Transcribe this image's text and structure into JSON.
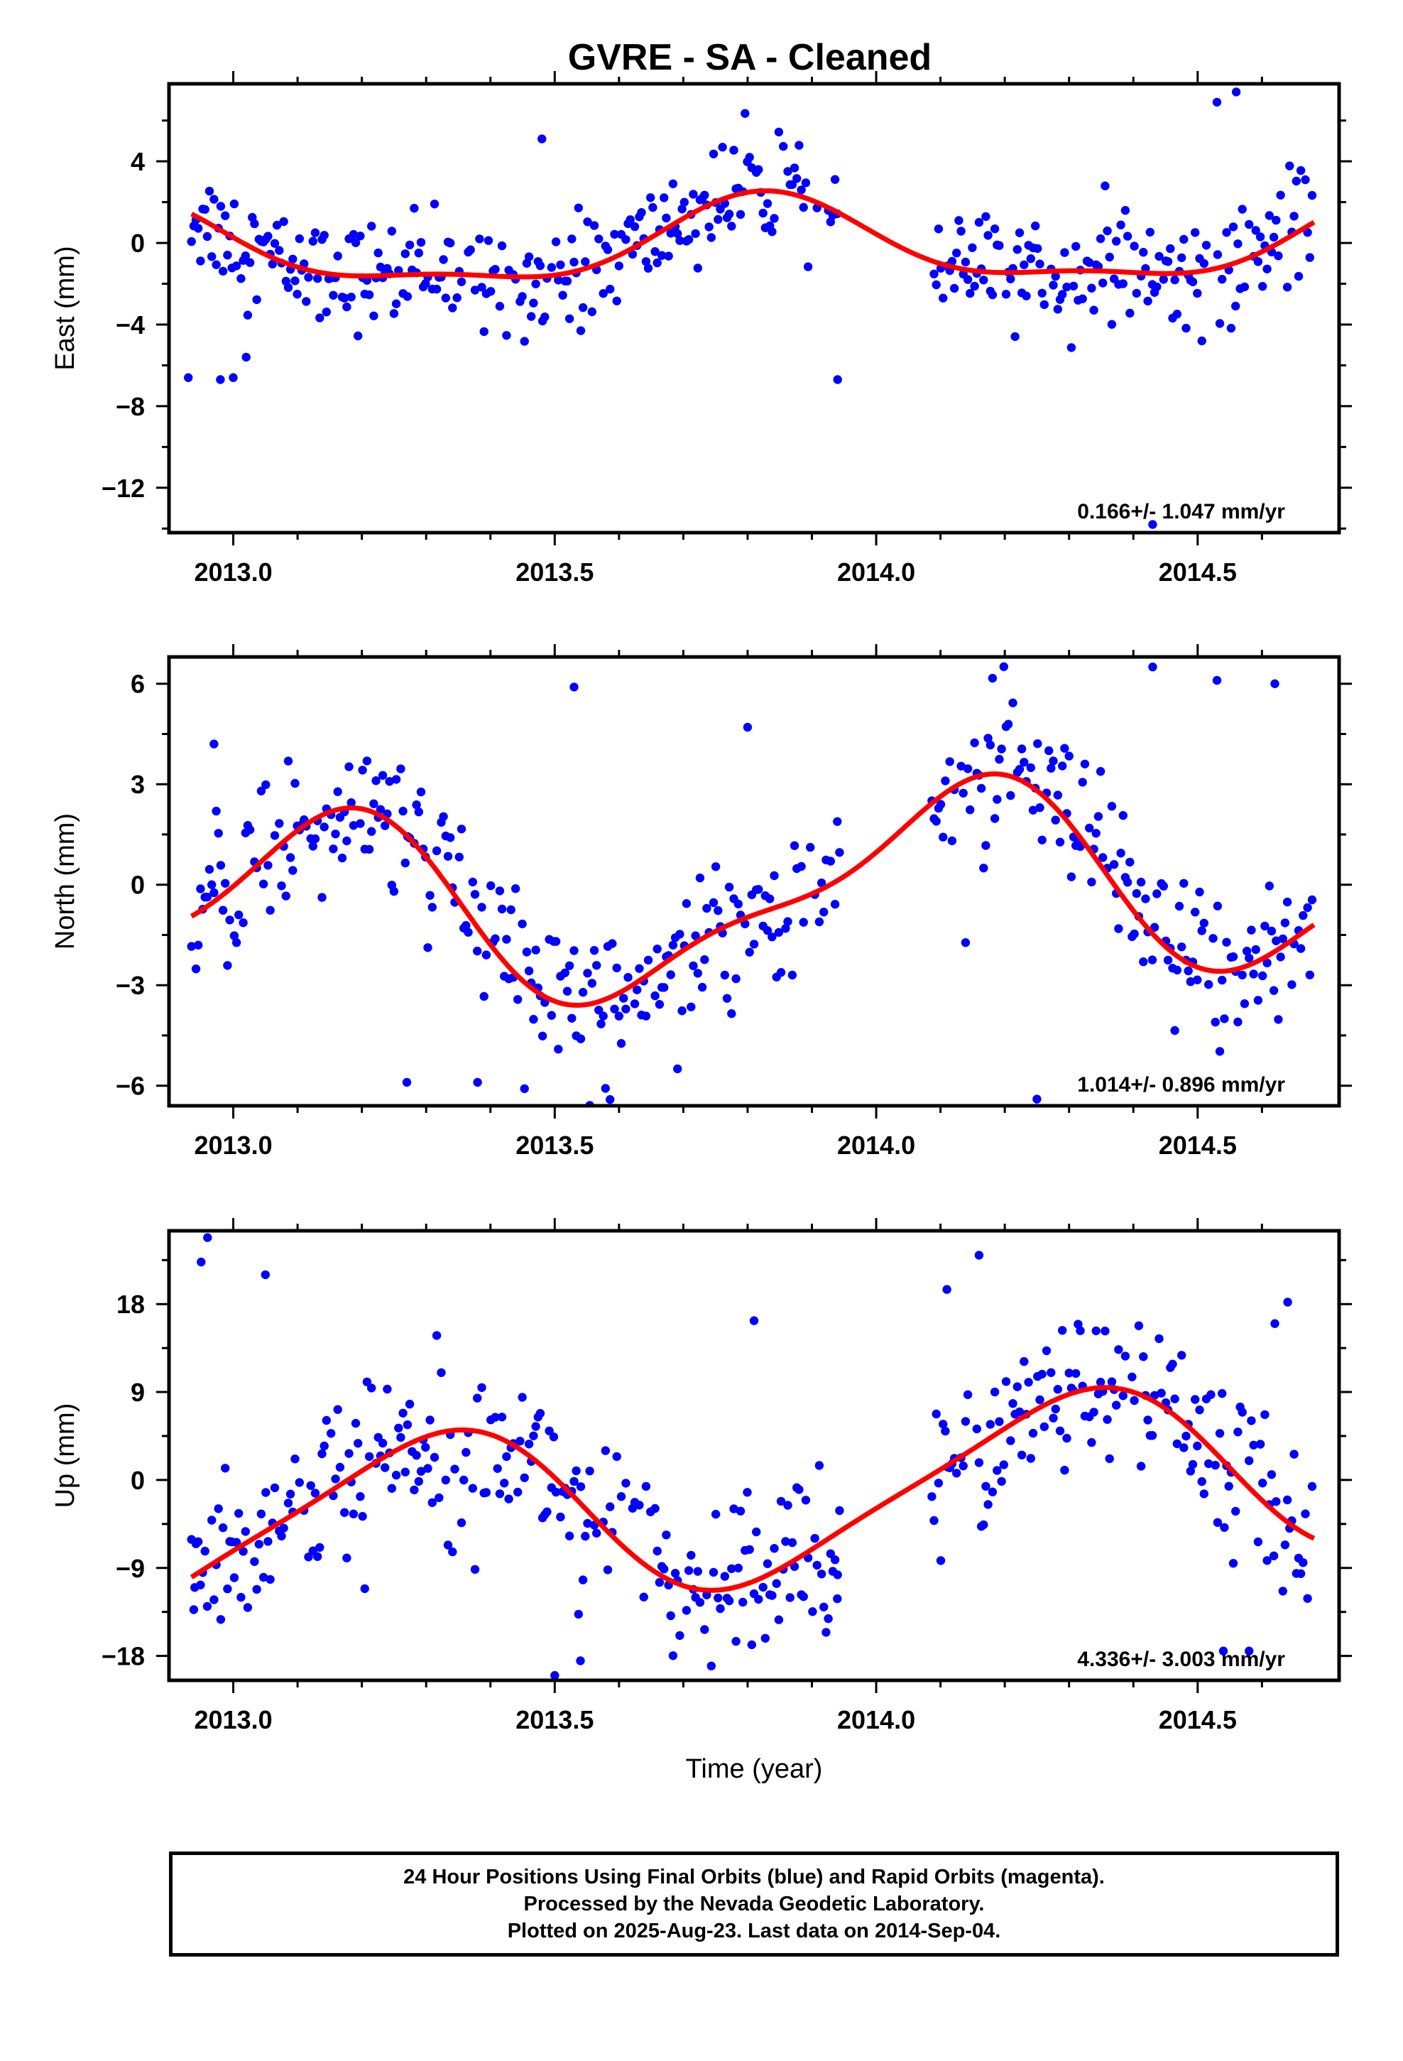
{
  "title": "GVRE  - SA - Cleaned",
  "footer": {
    "line1": "24 Hour Positions Using Final Orbits (blue) and Rapid Orbits (magenta).",
    "line2": "Processed by the Nevada Geodetic Laboratory.",
    "line3": "Plotted on 2025-Aug-23. Last data on 2014-Sep-04."
  },
  "colors": {
    "points": "#0000ff",
    "fit": "#ff0000",
    "frame": "#000000"
  },
  "chart_data": [
    {
      "type": "scatter",
      "title": "GVRE  - SA - Cleaned",
      "xlabel": "",
      "ylabel": "East (mm)",
      "xlim": [
        2012.9,
        2014.72
      ],
      "ylim": [
        -14.2,
        7.8
      ],
      "xticks": [
        2013.0,
        2013.5,
        2014.0,
        2014.5
      ],
      "xtick_labels": [
        "2013.0",
        "2013.5",
        "2014.0",
        "2014.5"
      ],
      "yticks": [
        4,
        0,
        -4,
        -8,
        -12
      ],
      "ytick_labels": [
        "4",
        "0",
        "−4",
        "−8",
        "−12"
      ],
      "rate_text": "0.166+/- 1.047 mm/yr",
      "fit": {
        "offset": -0.15,
        "rate": 0.166,
        "t0": 2013.8,
        "amp1": 2.0,
        "amp2": 0.7,
        "phase1": 0.58,
        "phase2": 0.2
      },
      "gaps": [
        [
          2013.945,
          2014.085
        ]
      ],
      "noise": 1.3,
      "outliers": [
        [
          2012.93,
          -6.6
        ],
        [
          2012.98,
          -6.7
        ],
        [
          2013.0,
          -6.6
        ],
        [
          2013.02,
          -5.6
        ],
        [
          2014.56,
          7.4
        ],
        [
          2014.53,
          6.9
        ],
        [
          2014.43,
          -13.8
        ],
        [
          2013.48,
          5.1
        ],
        [
          2013.94,
          -6.7
        ]
      ]
    },
    {
      "type": "scatter",
      "xlabel": "",
      "ylabel": "North (mm)",
      "xlim": [
        2012.9,
        2014.72
      ],
      "ylim": [
        -6.6,
        6.8
      ],
      "xticks": [
        2013.0,
        2013.5,
        2014.0,
        2014.5
      ],
      "xtick_labels": [
        "2013.0",
        "2013.5",
        "2014.0",
        "2014.5"
      ],
      "yticks": [
        6,
        3,
        0,
        -3,
        -6
      ],
      "ytick_labels": [
        "6",
        "3",
        "0",
        "−3",
        "−6"
      ],
      "rate_text": "1.014+/- 0.896 mm/yr",
      "fit": {
        "offset": -0.35,
        "rate": 1.014,
        "t0": 2013.8,
        "amp1": 2.7,
        "amp2": 0.9,
        "phase1": 0.87,
        "phase2": 0.1
      },
      "gaps": [
        [
          2013.945,
          2014.085
        ]
      ],
      "noise": 1.2,
      "outliers": [
        [
          2012.97,
          4.2
        ],
        [
          2013.53,
          5.9
        ],
        [
          2013.8,
          4.7
        ],
        [
          2014.43,
          6.5
        ],
        [
          2014.25,
          -6.4
        ],
        [
          2013.27,
          -5.9
        ],
        [
          2013.38,
          -5.9
        ],
        [
          2014.53,
          6.1
        ],
        [
          2014.62,
          6.0
        ]
      ]
    },
    {
      "type": "scatter",
      "xlabel": "Time (year)",
      "ylabel": "Up (mm)",
      "xlim": [
        2012.9,
        2014.72
      ],
      "ylim": [
        -20.5,
        25.5
      ],
      "xticks": [
        2013.0,
        2013.5,
        2014.0,
        2014.5
      ],
      "xtick_labels": [
        "2013.0",
        "2013.5",
        "2014.0",
        "2014.5"
      ],
      "yticks": [
        18,
        9,
        0,
        -9,
        -18
      ],
      "ytick_labels": [
        "18",
        "9",
        "0",
        "−9",
        "−18"
      ],
      "rate_text": "4.336+/- 3.003 mm/yr",
      "fit": {
        "offset": -2.0,
        "rate": 4.336,
        "t0": 2013.8,
        "amp1": 8.6,
        "amp2": 1.5,
        "phase1": 0.05,
        "phase2": 0.3
      },
      "gaps": [
        [
          2013.945,
          2014.085
        ]
      ],
      "noise": 4.2,
      "outliers": [
        [
          2012.96,
          24.8
        ],
        [
          2012.95,
          22.3
        ],
        [
          2013.05,
          21.0
        ],
        [
          2014.16,
          23.0
        ],
        [
          2012.94,
          -11.0
        ],
        [
          2013.5,
          -20.0
        ],
        [
          2013.54,
          -18.5
        ],
        [
          2014.54,
          -17.5
        ],
        [
          2014.58,
          -17.5
        ],
        [
          2014.64,
          18.2
        ],
        [
          2014.62,
          16.0
        ],
        [
          2013.81,
          16.3
        ],
        [
          2013.94,
          -9.7
        ],
        [
          2014.11,
          19.5
        ]
      ]
    }
  ]
}
